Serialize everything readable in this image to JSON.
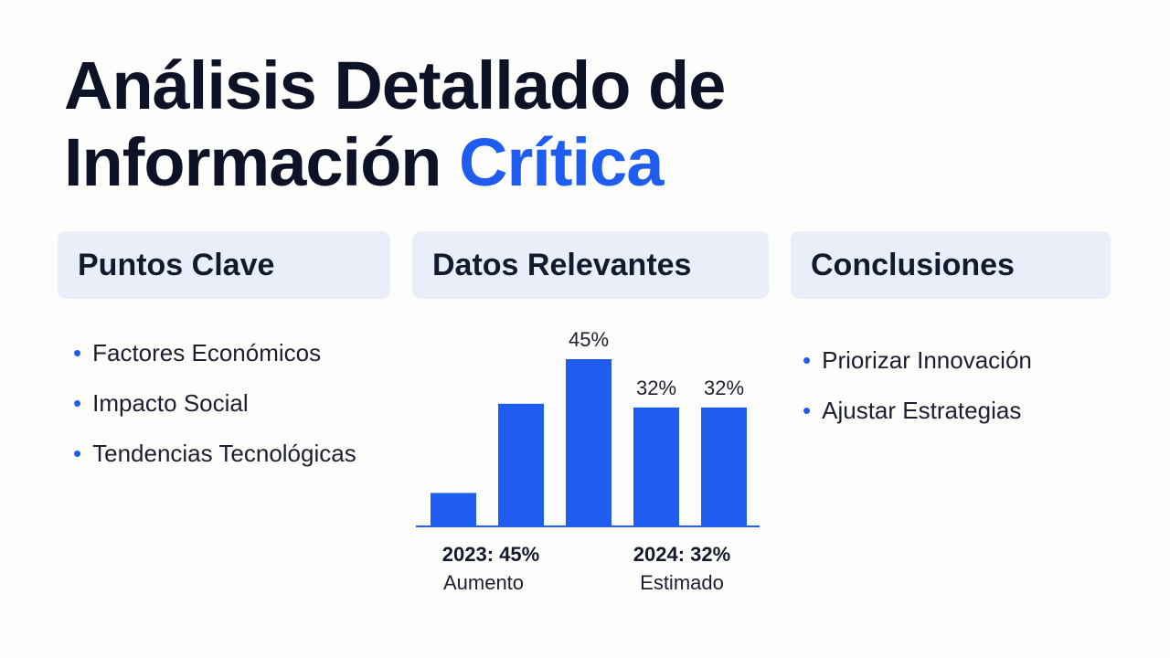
{
  "title": {
    "line1": "Análisis Detallado de",
    "line2": "Información",
    "highlight": "Crítica"
  },
  "columns": [
    {
      "heading": "Puntos Clave",
      "items": [
        "Factores Económicos",
        "Impacto Social",
        "Tendencias Tecnológicas"
      ]
    },
    {
      "heading": "Datos Relevantes"
    },
    {
      "heading": "Conclusiones",
      "items": [
        "Priorizar Innovación",
        "Ajustar Estrategias"
      ]
    }
  ],
  "chart_data": {
    "type": "bar",
    "color": "#1f5cf0",
    "categories": [
      null,
      null,
      null,
      null,
      null
    ],
    "values": [
      9,
      33,
      45,
      32,
      32
    ],
    "value_labels": [
      null,
      null,
      "45%",
      "32%",
      "32%"
    ],
    "annotations": [
      {
        "title": "2023: 45%",
        "text": "Aumento"
      },
      {
        "title": "2024: 32%",
        "text": "Estimado"
      }
    ]
  }
}
